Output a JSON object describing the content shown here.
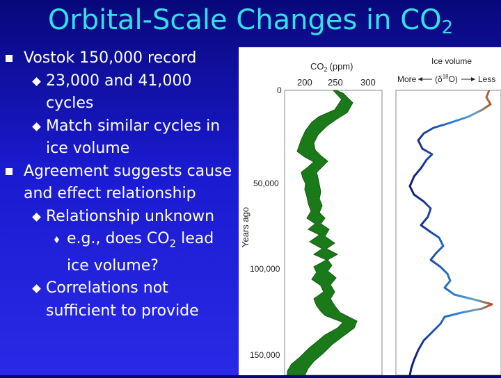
{
  "slide": {
    "title_main": "Orbital-Scale Changes in CO",
    "title_sub": "2"
  },
  "bullets": [
    {
      "level": 1,
      "text": "Vostok 150,000 record"
    },
    {
      "level": 2,
      "text": "23,000 and 41,000 cycles"
    },
    {
      "level": 2,
      "text": "Match similar cycles in ice volume"
    },
    {
      "level": 1,
      "text": "Agreement suggests cause and effect relationship"
    },
    {
      "level": 2,
      "text": "Relationship unknown"
    },
    {
      "level": 3,
      "pre": "e.g., does CO",
      "sub": "2",
      "post": " lead ice volume?"
    },
    {
      "level": 2,
      "text": "Correlations not sufficient to provide"
    }
  ],
  "figure": {
    "co2_header": "CO",
    "co2_header_sub": "2",
    "co2_unit": "(ppm)",
    "co2_ticks": [
      "200",
      "250",
      "300"
    ],
    "ice_header": "Ice volume",
    "ice_delta_pre": "(δ",
    "ice_delta_sup": "18",
    "ice_delta_post": "O)",
    "more": "More",
    "less": "Less",
    "y_axis_label": "Years ago",
    "y_ticks": [
      "0",
      "50,000",
      "100,000",
      "150,000"
    ],
    "colors": {
      "co2": "#1a7a1a",
      "ice_cold": "#1a2a8a",
      "ice_warm": "#c04a18"
    }
  }
}
